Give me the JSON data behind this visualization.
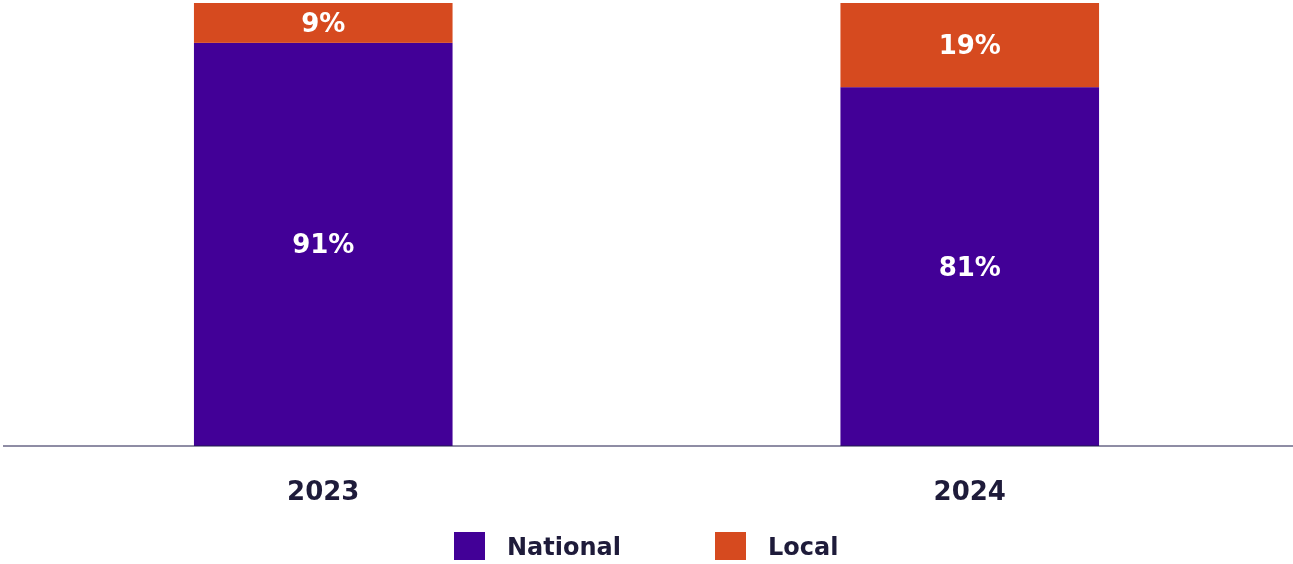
{
  "chart_data": {
    "type": "bar",
    "stacked": true,
    "categories": [
      "2023",
      "2024"
    ],
    "series": [
      {
        "name": "National",
        "color": "#420097",
        "values": [
          91,
          81
        ],
        "value_labels": [
          "91%",
          "81%"
        ]
      },
      {
        "name": "Local",
        "color": "#d64a1f",
        "values": [
          9,
          19
        ],
        "value_labels": [
          "9%",
          "19%"
        ]
      }
    ],
    "ylim": [
      0,
      100
    ],
    "tick_labels": "x",
    "legend": "bottom"
  }
}
